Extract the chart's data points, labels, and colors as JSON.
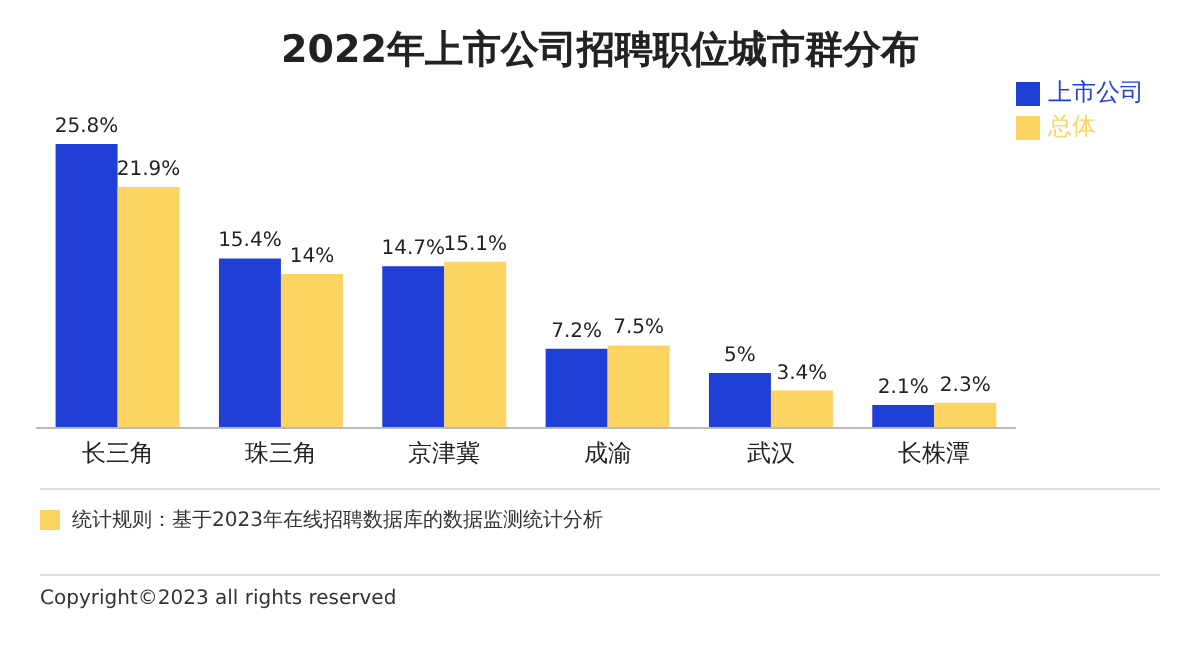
{
  "chart_data": {
    "type": "bar",
    "title": "2022年上市公司招聘职位城市群分布",
    "categories": [
      "长三角",
      "珠三角",
      "京津冀",
      "成渝",
      "武汉",
      "长株潭"
    ],
    "series": [
      {
        "name": "上市公司",
        "color": "#1f3fd6",
        "values": [
          25.8,
          15.4,
          14.7,
          7.2,
          5,
          2.1
        ],
        "value_labels": [
          "25.8%",
          "15.4%",
          "14.7%",
          "7.2%",
          "5%",
          "2.1%"
        ]
      },
      {
        "name": "总体",
        "color": "#fcd462",
        "values": [
          21.9,
          14,
          15.1,
          7.5,
          3.4,
          2.3
        ],
        "value_labels": [
          "21.9%",
          "14%",
          "15.1%",
          "7.5%",
          "3.4%",
          "2.3%"
        ]
      }
    ],
    "legend": "top right",
    "annotations": [
      "统计规则：基于2023年在线招聘数据库的数据监测统计分析",
      "Copyright©2023 all rights reserved"
    ]
  }
}
